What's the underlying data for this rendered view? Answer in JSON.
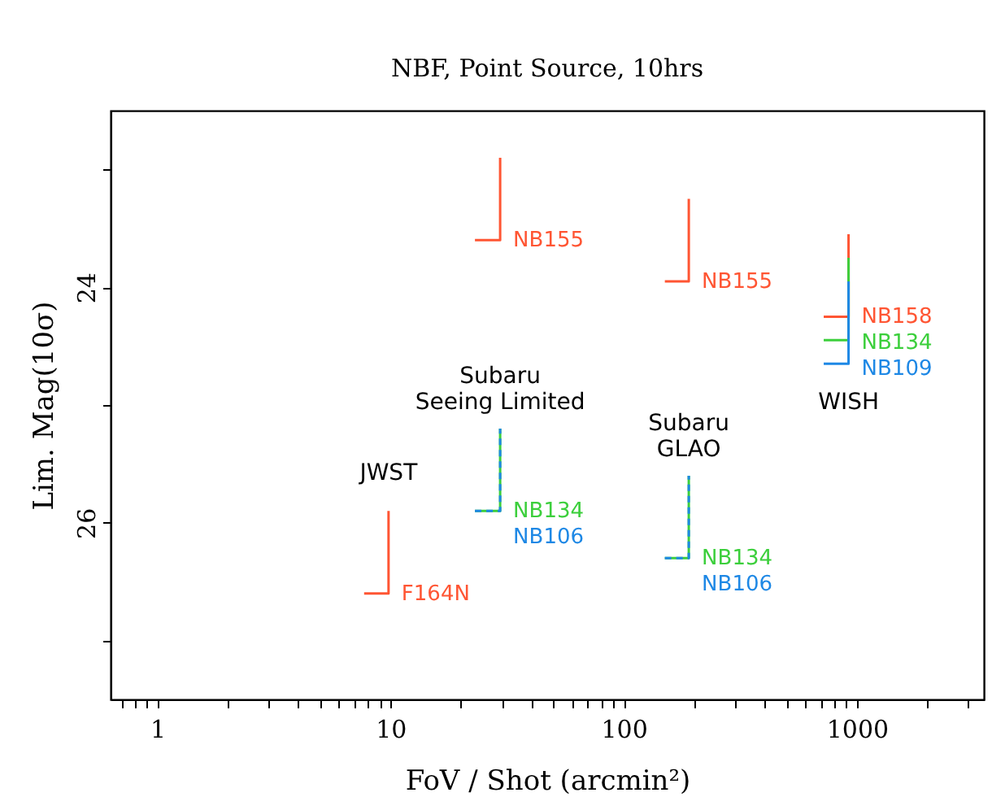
{
  "chart_data": {
    "type": "line",
    "title": "NBF, Point Source, 10hrs",
    "xlabel": "FoV / Shot (arcmin²)",
    "ylabel": "Lim. Mag(10σ)",
    "log": "x",
    "grid": false,
    "xlim": [
      0.63,
      3500
    ],
    "ylim": [
      27.5,
      22.5
    ],
    "xticks": [
      {
        "value": 0.7,
        "label": null
      },
      {
        "value": 0.8,
        "label": null
      },
      {
        "value": 0.9,
        "label": null
      },
      1,
      {
        "value": 2,
        "label": null
      },
      {
        "value": 3,
        "label": null
      },
      {
        "value": 4,
        "label": null
      },
      {
        "value": 5,
        "label": null
      },
      {
        "value": 6,
        "label": null
      },
      {
        "value": 7,
        "label": null
      },
      {
        "value": 8,
        "label": null
      },
      {
        "value": 9,
        "label": null
      },
      10,
      {
        "value": 20,
        "label": null
      },
      {
        "value": 30,
        "label": null
      },
      {
        "value": 40,
        "label": null
      },
      {
        "value": 50,
        "label": null
      },
      {
        "value": 60,
        "label": null
      },
      {
        "value": 70,
        "label": null
      },
      {
        "value": 80,
        "label": null
      },
      {
        "value": 90,
        "label": null
      },
      100,
      {
        "value": 200,
        "label": null
      },
      {
        "value": 300,
        "label": null
      },
      {
        "value": 400,
        "label": null
      },
      {
        "value": 500,
        "label": null
      },
      {
        "value": 600,
        "label": null
      },
      {
        "value": 700,
        "label": null
      },
      {
        "value": 800,
        "label": null
      },
      {
        "value": 900,
        "label": null
      },
      1000,
      {
        "value": 2000,
        "label": null
      },
      {
        "value": 3000,
        "label": null
      }
    ],
    "yticks": [
      {
        "value": 23,
        "label": null
      },
      24,
      {
        "value": 25,
        "label": null
      },
      26,
      {
        "value": 27,
        "label": null
      }
    ],
    "series": [
      {
        "name": "F164N",
        "color": "#ff5533",
        "x": [
          7.7,
          9.8,
          9.8
        ],
        "values": [
          26.6,
          26.6,
          25.9
        ]
      },
      {
        "name": "NB155",
        "color": "#ff5533",
        "x": [
          23,
          29.5,
          29.5
        ],
        "values": [
          23.6,
          23.6,
          22.9
        ]
      },
      {
        "name": "NB134",
        "color": "#3ccf3c",
        "x": [
          23,
          29.5,
          29.5
        ],
        "values": [
          25.9,
          25.9,
          25.2
        ]
      },
      {
        "name": "NB106",
        "color": "#1e88e5",
        "line_style": "dashed",
        "x": [
          23,
          29.5,
          29.5
        ],
        "values": [
          25.9,
          25.9,
          25.2
        ]
      },
      {
        "name": "NB155",
        "color": "#ff5533",
        "x": [
          150,
          190,
          190
        ],
        "values": [
          23.95,
          23.95,
          23.25
        ]
      },
      {
        "name": "NB134",
        "color": "#3ccf3c",
        "x": [
          150,
          190,
          190
        ],
        "values": [
          26.3,
          26.3,
          25.6
        ]
      },
      {
        "name": "NB106",
        "color": "#1e88e5",
        "line_style": "dashed",
        "x": [
          150,
          190,
          190
        ],
        "values": [
          26.3,
          26.3,
          25.6
        ]
      },
      {
        "name": "NB158",
        "color": "#ff5533",
        "x": [
          720,
          920,
          920
        ],
        "values": [
          24.25,
          24.25,
          23.55
        ]
      },
      {
        "name": "NB134",
        "color": "#3ccf3c",
        "x": [
          720,
          920,
          920
        ],
        "values": [
          24.45,
          24.45,
          23.75
        ]
      },
      {
        "name": "NB109",
        "color": "#1e88e5",
        "x": [
          720,
          920,
          920
        ],
        "values": [
          24.65,
          24.65,
          23.95
        ]
      }
    ],
    "annotations": [
      "JWST",
      "Subaru\nSeeing Limited",
      "Subaru\nGLAO",
      "WISH"
    ]
  }
}
